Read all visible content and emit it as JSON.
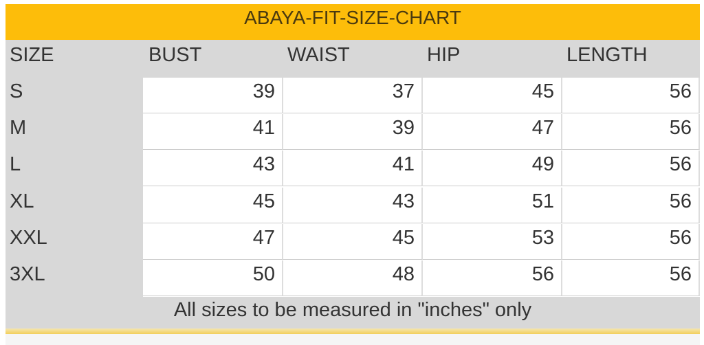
{
  "title": "ABAYA-FIT-SIZE-CHART",
  "columns": [
    "SIZE",
    "BUST",
    "WAIST",
    "HIP",
    "LENGTH"
  ],
  "rows": [
    {
      "size": "S",
      "values": [
        "39",
        "37",
        "45",
        "56"
      ]
    },
    {
      "size": "M",
      "values": [
        "41",
        "39",
        "47",
        "56"
      ]
    },
    {
      "size": "L",
      "values": [
        "43",
        "41",
        "49",
        "56"
      ]
    },
    {
      "size": "XL",
      "values": [
        "45",
        "43",
        "51",
        "56"
      ]
    },
    {
      "size": "XXL",
      "values": [
        "47",
        "45",
        "53",
        "56"
      ]
    },
    {
      "size": "3XL",
      "values": [
        "50",
        "48",
        "56",
        "56"
      ]
    }
  ],
  "footnote": "All sizes to be measured in \"inches\" only",
  "colors": {
    "banner": "#fdbd0a",
    "header_bg": "#d8d8d8"
  }
}
